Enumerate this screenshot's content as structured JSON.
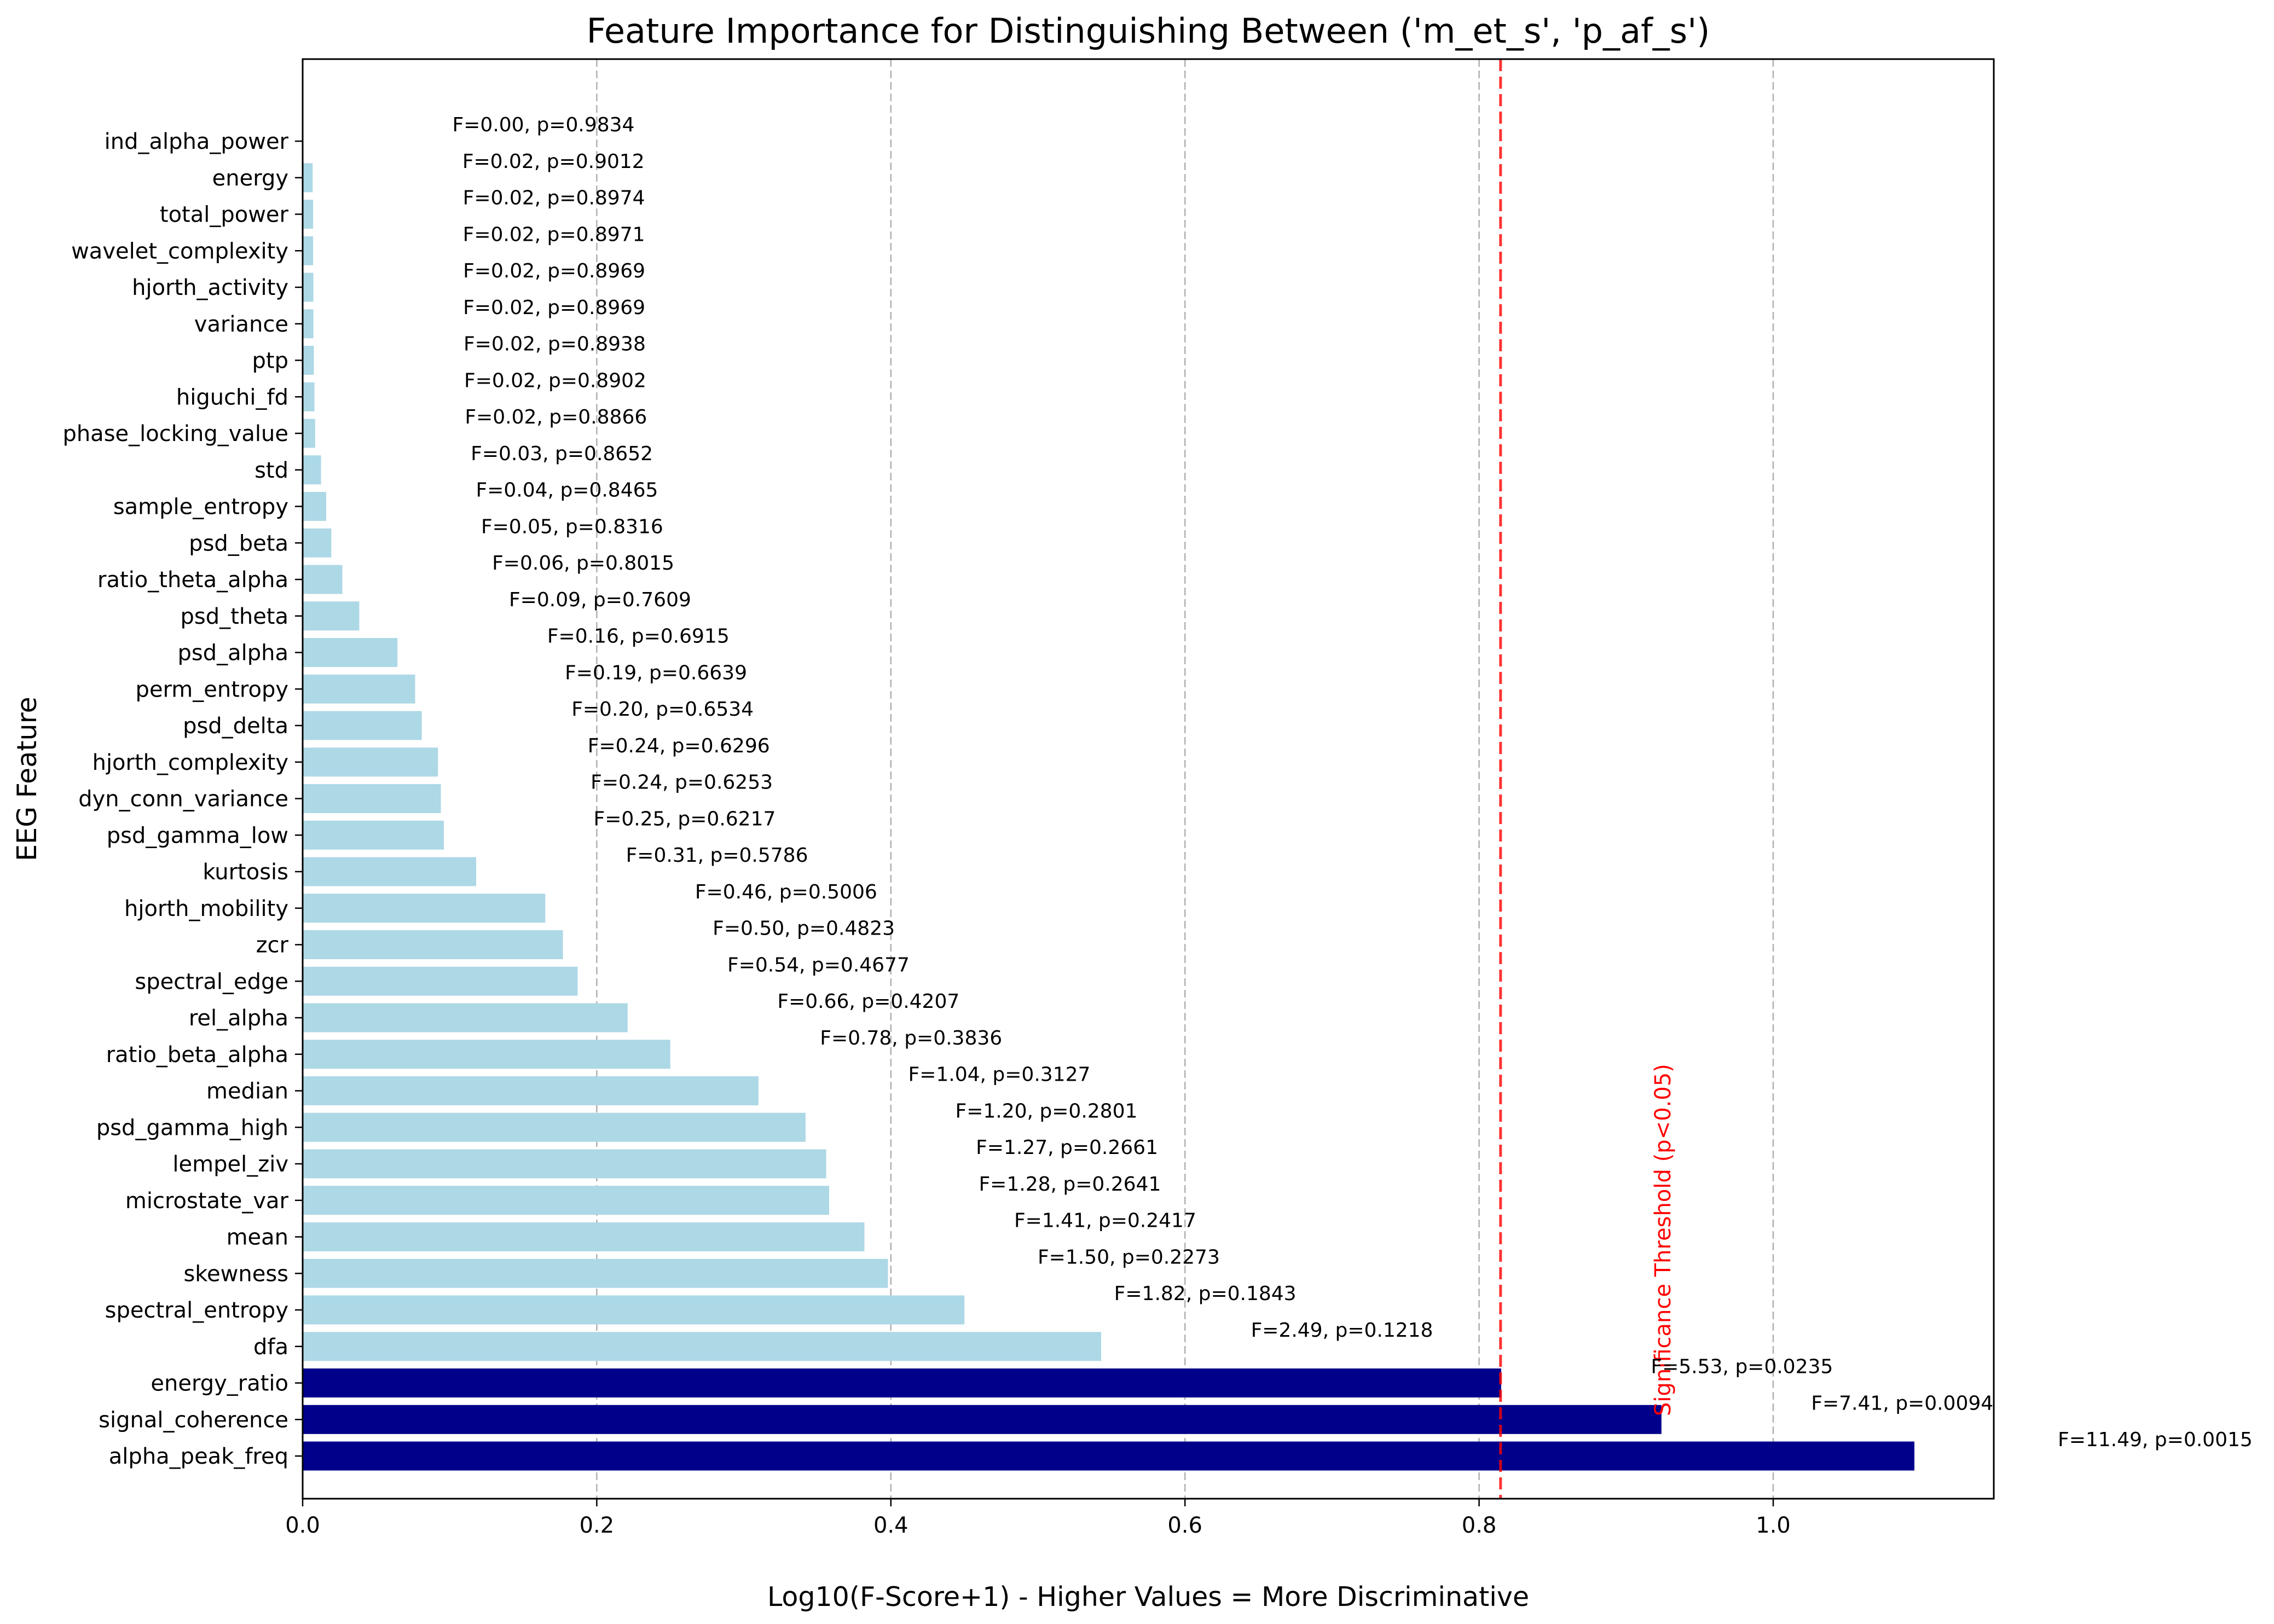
{
  "chart_data": {
    "type": "bar",
    "orientation": "horizontal",
    "title": "Feature Importance for Distinguishing Between ('m_et_s', 'p_af_s')",
    "xlabel": "Log10(F-Score+1) - Higher Values = More Discriminative",
    "ylabel": "EEG Feature",
    "xlim": [
      0,
      1.15
    ],
    "x_ticks": [
      "0.0",
      "0.2",
      "0.4",
      "0.6",
      "0.8",
      "1.0"
    ],
    "x_tick_values": [
      0,
      0.2,
      0.4,
      0.6,
      0.8,
      1.0
    ],
    "grid": "x-axis dashed",
    "colors": {
      "non_significant": "#add8e6",
      "significant": "#00008b",
      "threshold": "#ff0000",
      "grid": "#b0b0b0"
    },
    "threshold": {
      "value": 0.8146,
      "label": "Significance Threshold (p<0.05)"
    },
    "features": [
      {
        "name": "ind_alpha_power",
        "value": 0.0,
        "label": "F=0.00, p=0.9834",
        "significant": false
      },
      {
        "name": "energy",
        "value": 0.0068,
        "label": "F=0.02, p=0.9012",
        "significant": false
      },
      {
        "name": "total_power",
        "value": 0.0071,
        "label": "F=0.02, p=0.8974",
        "significant": false
      },
      {
        "name": "wavelet_complexity",
        "value": 0.0071,
        "label": "F=0.02, p=0.8971",
        "significant": false
      },
      {
        "name": "hjorth_activity",
        "value": 0.0073,
        "label": "F=0.02, p=0.8969",
        "significant": false
      },
      {
        "name": "variance",
        "value": 0.0073,
        "label": "F=0.02, p=0.8969",
        "significant": false
      },
      {
        "name": "ptp",
        "value": 0.0076,
        "label": "F=0.02, p=0.8938",
        "significant": false
      },
      {
        "name": "higuchi_fd",
        "value": 0.008,
        "label": "F=0.02, p=0.8902",
        "significant": false
      },
      {
        "name": "phase_locking_value",
        "value": 0.0085,
        "label": "F=0.02, p=0.8866",
        "significant": false
      },
      {
        "name": "std",
        "value": 0.0125,
        "label": "F=0.03, p=0.8652",
        "significant": false
      },
      {
        "name": "sample_entropy",
        "value": 0.016,
        "label": "F=0.04, p=0.8465",
        "significant": false
      },
      {
        "name": "psd_beta",
        "value": 0.0195,
        "label": "F=0.05, p=0.8316",
        "significant": false
      },
      {
        "name": "ratio_theta_alpha",
        "value": 0.027,
        "label": "F=0.06, p=0.8015",
        "significant": false
      },
      {
        "name": "psd_theta",
        "value": 0.0385,
        "label": "F=0.09, p=0.7609",
        "significant": false
      },
      {
        "name": "psd_alpha",
        "value": 0.0645,
        "label": "F=0.16, p=0.6915",
        "significant": false
      },
      {
        "name": "perm_entropy",
        "value": 0.0765,
        "label": "F=0.19, p=0.6639",
        "significant": false
      },
      {
        "name": "psd_delta",
        "value": 0.081,
        "label": "F=0.20, p=0.6534",
        "significant": false
      },
      {
        "name": "hjorth_complexity",
        "value": 0.092,
        "label": "F=0.24, p=0.6296",
        "significant": false
      },
      {
        "name": "dyn_conn_variance",
        "value": 0.094,
        "label": "F=0.24, p=0.6253",
        "significant": false
      },
      {
        "name": "psd_gamma_low",
        "value": 0.096,
        "label": "F=0.25, p=0.6217",
        "significant": false
      },
      {
        "name": "kurtosis",
        "value": 0.118,
        "label": "F=0.31, p=0.5786",
        "significant": false
      },
      {
        "name": "hjorth_mobility",
        "value": 0.165,
        "label": "F=0.46, p=0.5006",
        "significant": false
      },
      {
        "name": "zcr",
        "value": 0.177,
        "label": "F=0.50, p=0.4823",
        "significant": false
      },
      {
        "name": "spectral_edge",
        "value": 0.187,
        "label": "F=0.54, p=0.4677",
        "significant": false
      },
      {
        "name": "rel_alpha",
        "value": 0.221,
        "label": "F=0.66, p=0.4207",
        "significant": false
      },
      {
        "name": "ratio_beta_alpha",
        "value": 0.25,
        "label": "F=0.78, p=0.3836",
        "significant": false
      },
      {
        "name": "median",
        "value": 0.31,
        "label": "F=1.04, p=0.3127",
        "significant": false
      },
      {
        "name": "psd_gamma_high",
        "value": 0.342,
        "label": "F=1.20, p=0.2801",
        "significant": false
      },
      {
        "name": "lempel_ziv",
        "value": 0.356,
        "label": "F=1.27, p=0.2661",
        "significant": false
      },
      {
        "name": "microstate_var",
        "value": 0.358,
        "label": "F=1.28, p=0.2641",
        "significant": false
      },
      {
        "name": "mean",
        "value": 0.382,
        "label": "F=1.41, p=0.2417",
        "significant": false
      },
      {
        "name": "skewness",
        "value": 0.398,
        "label": "F=1.50, p=0.2273",
        "significant": false
      },
      {
        "name": "spectral_entropy",
        "value": 0.45,
        "label": "F=1.82, p=0.1843",
        "significant": false
      },
      {
        "name": "dfa",
        "value": 0.543,
        "label": "F=2.49, p=0.1218",
        "significant": false
      },
      {
        "name": "energy_ratio",
        "value": 0.815,
        "label": "F=5.53, p=0.0235",
        "significant": true
      },
      {
        "name": "signal_coherence",
        "value": 0.924,
        "label": "F=7.41, p=0.0094",
        "significant": true
      },
      {
        "name": "alpha_peak_freq",
        "value": 1.096,
        "label": "F=11.49, p=0.0015",
        "significant": true
      }
    ]
  }
}
